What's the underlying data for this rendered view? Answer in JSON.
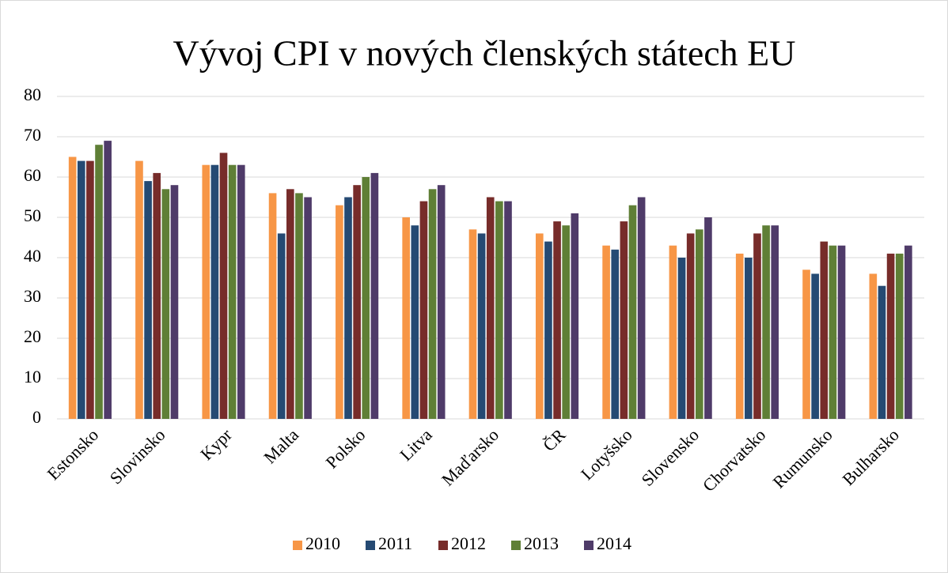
{
  "chart_data": {
    "type": "bar",
    "title": "Vývoj CPI v nových členských státech EU",
    "categories": [
      "Estonsko",
      "Slovinsko",
      "Kypr",
      "Malta",
      "Polsko",
      "Litva",
      "Maďarsko",
      "ČR",
      "Lotyšsko",
      "Slovensko",
      "Chorvatsko",
      "Rumunsko",
      "Bulharsko"
    ],
    "series": [
      {
        "name": "2010",
        "color": "#f79646",
        "values": [
          65,
          64,
          63,
          56,
          53,
          50,
          47,
          46,
          43,
          43,
          41,
          37,
          36
        ]
      },
      {
        "name": "2011",
        "color": "#254a73",
        "values": [
          64,
          59,
          63,
          46,
          55,
          48,
          46,
          44,
          42,
          40,
          40,
          36,
          33
        ]
      },
      {
        "name": "2012",
        "color": "#772c2a",
        "values": [
          64,
          61,
          66,
          57,
          58,
          54,
          55,
          49,
          49,
          46,
          46,
          44,
          41
        ]
      },
      {
        "name": "2013",
        "color": "#5f7f36",
        "values": [
          68,
          57,
          63,
          56,
          60,
          57,
          54,
          48,
          53,
          47,
          48,
          43,
          41
        ]
      },
      {
        "name": "2014",
        "color": "#4f3b69",
        "values": [
          69,
          58,
          63,
          55,
          61,
          58,
          54,
          51,
          55,
          50,
          48,
          43,
          43
        ]
      }
    ],
    "ylim": [
      0,
      80
    ],
    "yticks": [
      0,
      10,
      20,
      30,
      40,
      50,
      60,
      70,
      80
    ],
    "grid": true,
    "legend": "bottom"
  }
}
